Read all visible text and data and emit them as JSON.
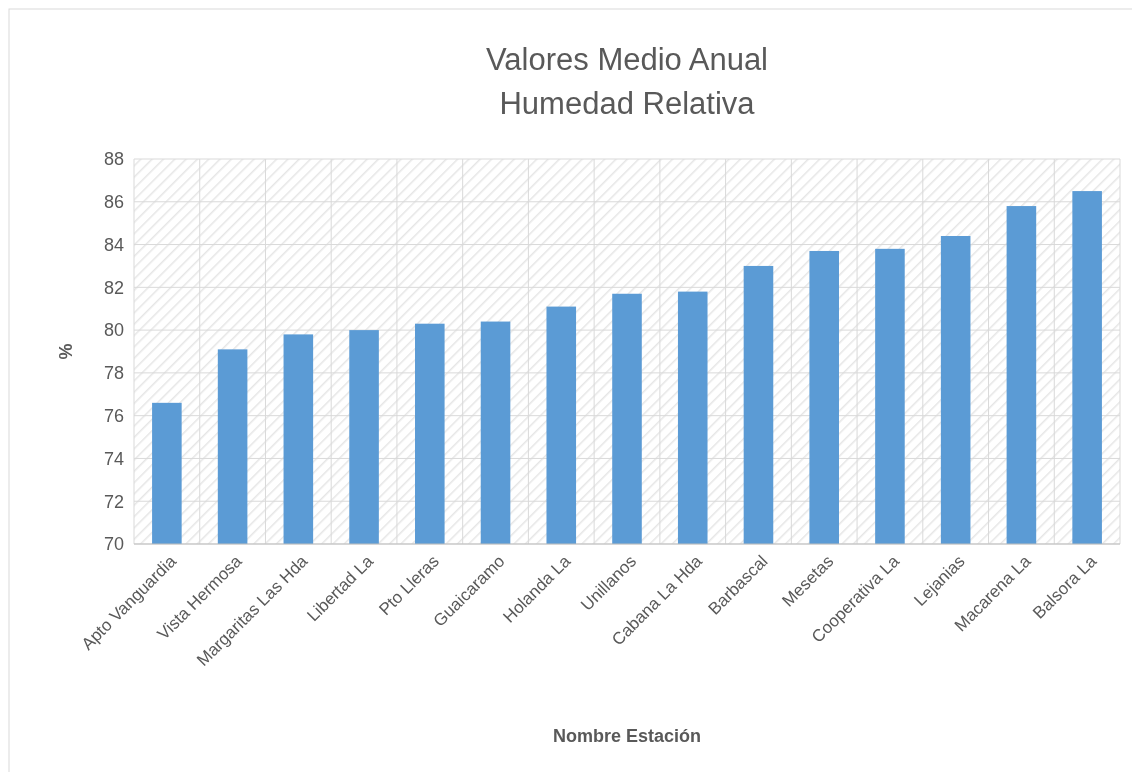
{
  "chart_data": {
    "type": "bar",
    "title": "Valores Medio Anual\nHumedad Relativa",
    "xlabel": "Nombre Estación",
    "ylabel": "%",
    "categories": [
      "Apto Vanguardia",
      "Vista Hermosa",
      "Margaritas Las Hda",
      "Libertad La",
      "Pto Lleras",
      "Guaicaramo",
      "Holanda La",
      "Unillanos",
      "Cabana La Hda",
      "Barbascal",
      "Mesetas",
      "Cooperativa La",
      "Lejanias",
      "Macarena La",
      "Balsora La"
    ],
    "values": [
      76.6,
      79.1,
      79.8,
      80.0,
      80.3,
      80.4,
      81.1,
      81.7,
      81.8,
      83.0,
      83.7,
      83.8,
      84.4,
      85.8,
      86.5
    ],
    "color": "#5b9bd5",
    "ylim": [
      70,
      88
    ],
    "yticks": [
      70,
      72,
      74,
      76,
      78,
      80,
      82,
      84,
      86,
      88
    ],
    "grid": true
  }
}
